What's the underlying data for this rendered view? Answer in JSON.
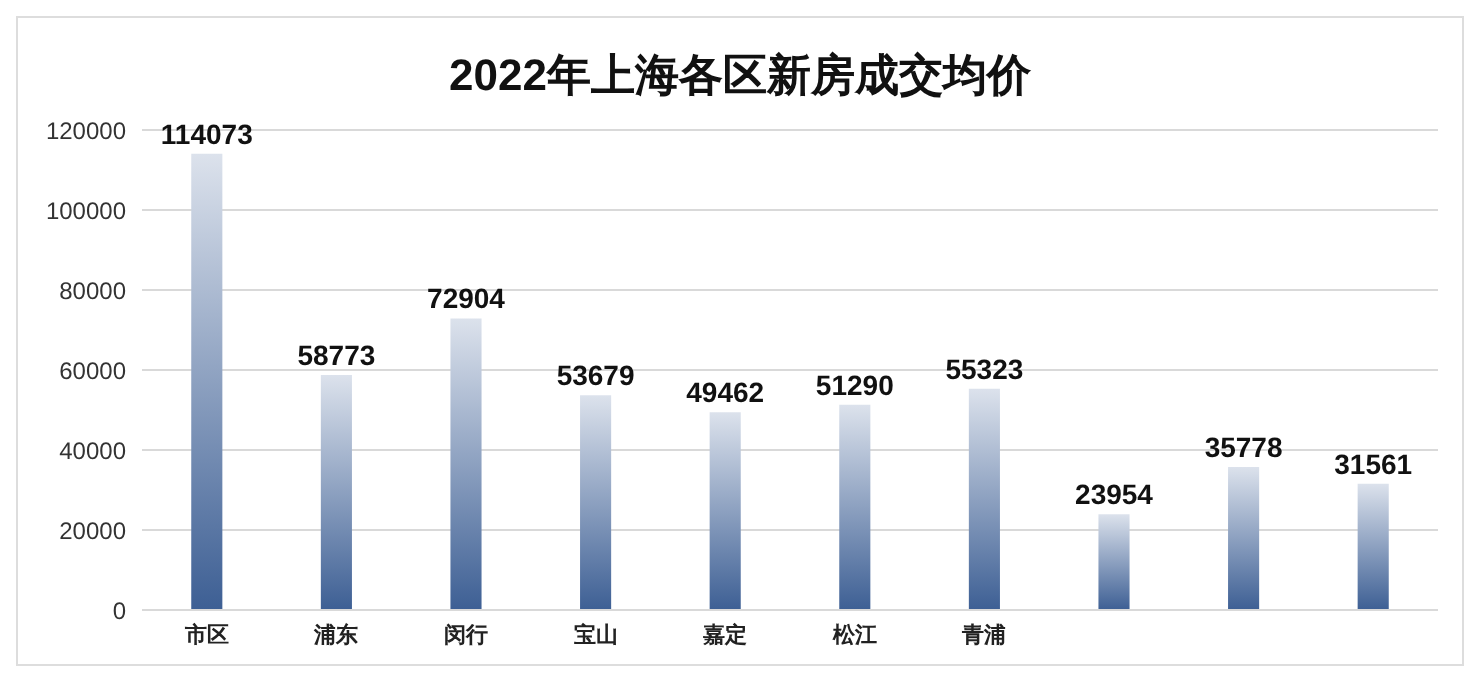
{
  "chart_data": {
    "type": "bar",
    "title": "2022年上海各区新房成交均价",
    "categories": [
      "市区",
      "浦东",
      "闵行",
      "宝山",
      "嘉定",
      "松江",
      "青浦",
      null,
      null,
      null
    ],
    "values": [
      114073,
      58773,
      72904,
      53679,
      49462,
      51290,
      55323,
      23954,
      35778,
      31561
    ],
    "color": "#3d5f94",
    "ylim": [
      0,
      120000
    ],
    "yticks": [
      0,
      20000,
      40000,
      60000,
      80000,
      100000,
      120000
    ],
    "grid": "y",
    "data_labels": true
  }
}
